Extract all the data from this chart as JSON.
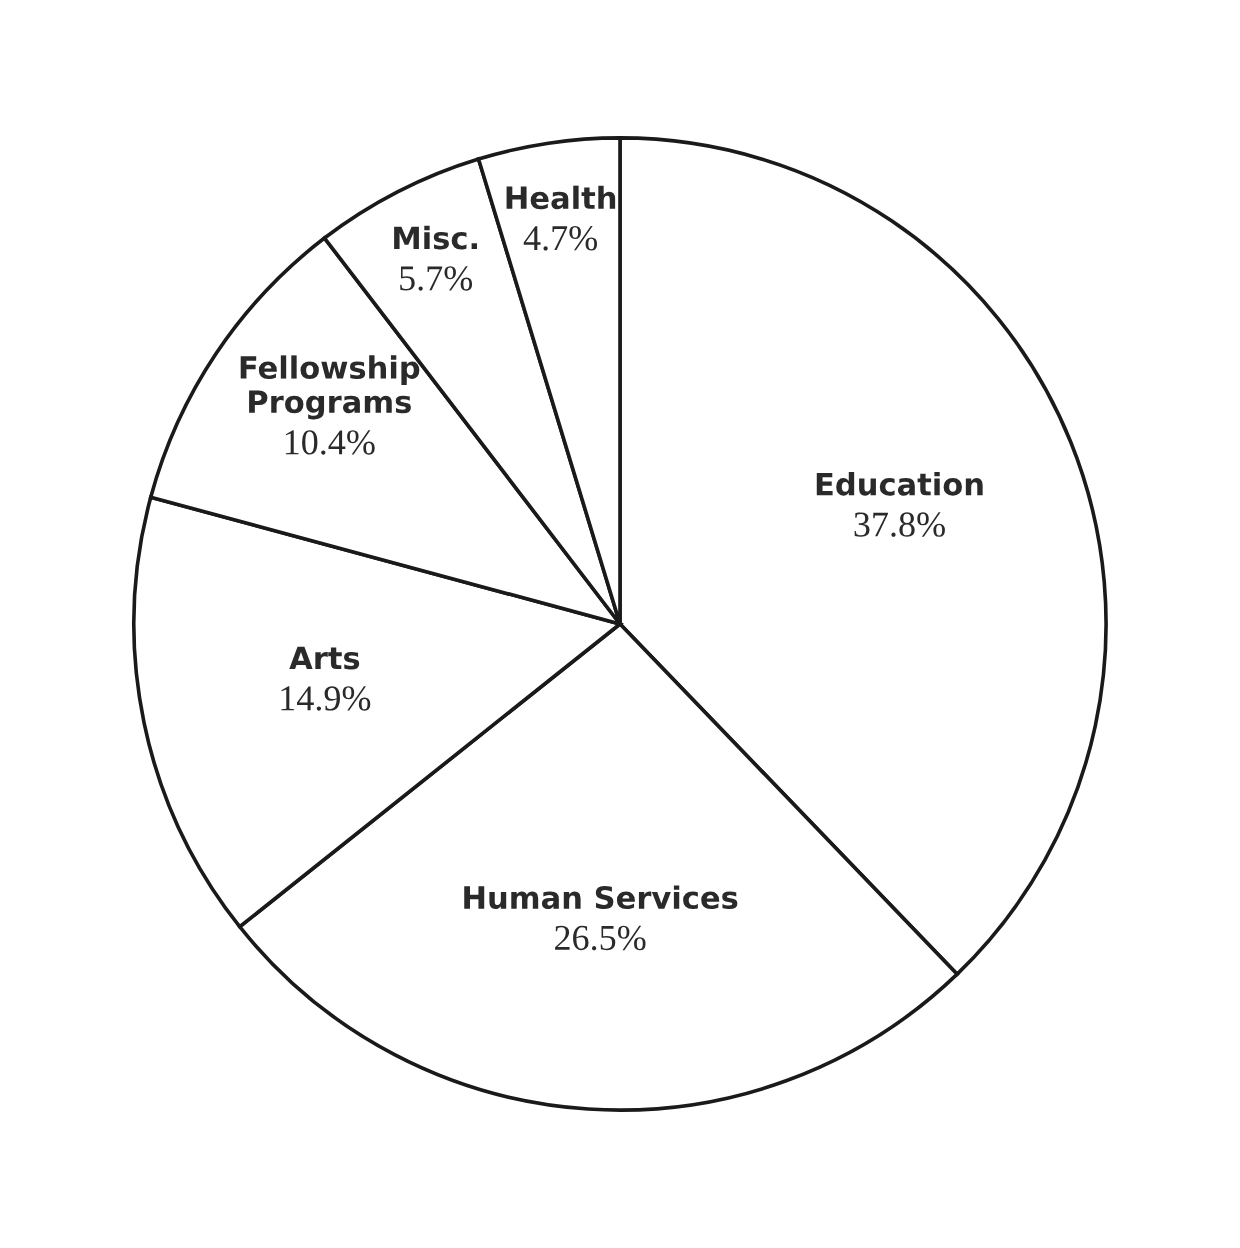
{
  "chart_data": {
    "type": "pie",
    "categories": [
      "Education",
      "Human Services",
      "Arts",
      "Fellowship Programs",
      "Misc.",
      "Health"
    ],
    "values": [
      37.8,
      26.5,
      14.9,
      10.4,
      5.7,
      4.7
    ],
    "value_labels": [
      "37.8%",
      "26.5%",
      "14.9%",
      "10.4%",
      "5.7%",
      "4.7%"
    ],
    "colors": [
      "#ffffff",
      "#ffffff",
      "#ffffff",
      "#ffffff",
      "#ffffff",
      "#ffffff"
    ],
    "legend": false
  }
}
